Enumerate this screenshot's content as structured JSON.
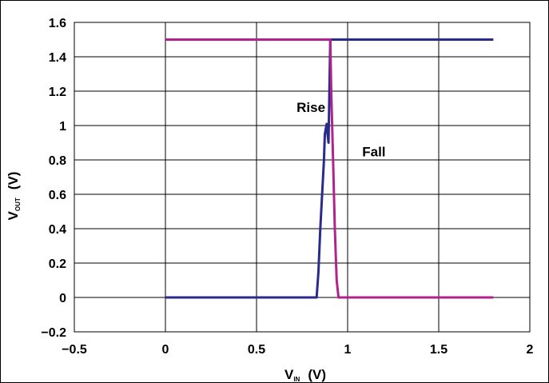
{
  "chart_data": {
    "type": "line",
    "xlabel": {
      "main": "V",
      "sub": "IN",
      "unit": "(V)"
    },
    "ylabel": {
      "main": "V",
      "sub": "OUT",
      "unit": "(V)"
    },
    "xlim": [
      -0.5,
      2
    ],
    "ylim": [
      -0.2,
      1.6
    ],
    "x_ticks": [
      -0.5,
      0,
      0.5,
      1,
      1.5,
      2
    ],
    "x_tick_labels": [
      "−0.5",
      "0",
      "0.5",
      "1",
      "1.5",
      "2"
    ],
    "y_ticks": [
      -0.2,
      0,
      0.2,
      0.4,
      0.6,
      0.8,
      1,
      1.2,
      1.4,
      1.6
    ],
    "y_tick_labels": [
      "−0.2",
      "0",
      "0.2",
      "0.4",
      "0.6",
      "0.8",
      "1",
      "1.2",
      "1.4",
      "1.6"
    ],
    "grid": true,
    "series": [
      {
        "name": "Rise",
        "color": "#2a2a8c",
        "points": [
          [
            0,
            0
          ],
          [
            0.83,
            0
          ],
          [
            0.84,
            0.15
          ],
          [
            0.85,
            0.4
          ],
          [
            0.86,
            0.6
          ],
          [
            0.87,
            0.8
          ],
          [
            0.875,
            0.95
          ],
          [
            0.885,
            1.01
          ],
          [
            0.89,
            0.95
          ],
          [
            0.895,
            0.9
          ],
          [
            0.9,
            1.2
          ],
          [
            0.905,
            1.5
          ],
          [
            1.8,
            1.5
          ]
        ]
      },
      {
        "name": "Fall",
        "color": "#b0238c",
        "points": [
          [
            0,
            1.5
          ],
          [
            0.905,
            1.5
          ],
          [
            0.91,
            1.2
          ],
          [
            0.92,
            0.8
          ],
          [
            0.93,
            0.4
          ],
          [
            0.94,
            0.1
          ],
          [
            0.95,
            0
          ],
          [
            1.8,
            0
          ]
        ]
      }
    ],
    "annotations": [
      {
        "text": "Rise",
        "x": 0.72,
        "y": 1.08
      },
      {
        "text": "Fall",
        "x": 1.08,
        "y": 0.82
      }
    ]
  }
}
